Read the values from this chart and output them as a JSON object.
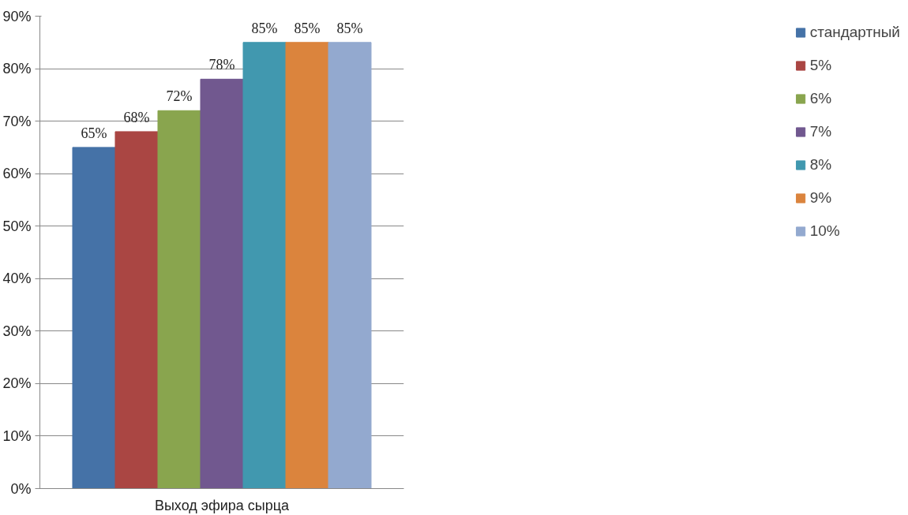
{
  "chart_data": {
    "type": "bar",
    "categories": [
      "Выход эфира сырца"
    ],
    "series": [
      {
        "name": "стандартный",
        "color": "#4572a7",
        "values": [
          65
        ],
        "value_labels": [
          "65%"
        ]
      },
      {
        "name": "5%",
        "color": "#aa4643",
        "values": [
          68
        ],
        "value_labels": [
          "68%"
        ]
      },
      {
        "name": "6%",
        "color": "#89a54e",
        "values": [
          72
        ],
        "value_labels": [
          "72%"
        ]
      },
      {
        "name": "7%",
        "color": "#71588f",
        "values": [
          78
        ],
        "value_labels": [
          "78%"
        ]
      },
      {
        "name": "8%",
        "color": "#4198af",
        "values": [
          85
        ],
        "value_labels": [
          "85%"
        ]
      },
      {
        "name": "9%",
        "color": "#db843d",
        "values": [
          85
        ],
        "value_labels": [
          "85%"
        ]
      },
      {
        "name": "10%",
        "color": "#93a9cf",
        "values": [
          85
        ],
        "value_labels": [
          "85%"
        ]
      }
    ],
    "ylim": [
      0,
      90
    ],
    "yticks": [
      {
        "value": 0,
        "label": "0%"
      },
      {
        "value": 10,
        "label": "10%"
      },
      {
        "value": 20,
        "label": "20%"
      },
      {
        "value": 30,
        "label": "30%"
      },
      {
        "value": 40,
        "label": "40%"
      },
      {
        "value": 50,
        "label": "50%"
      },
      {
        "value": 60,
        "label": "60%"
      },
      {
        "value": 70,
        "label": "70%"
      },
      {
        "value": 80,
        "label": "80%"
      },
      {
        "value": 90,
        "label": "90%"
      }
    ],
    "grid": "y",
    "legend": "right"
  }
}
